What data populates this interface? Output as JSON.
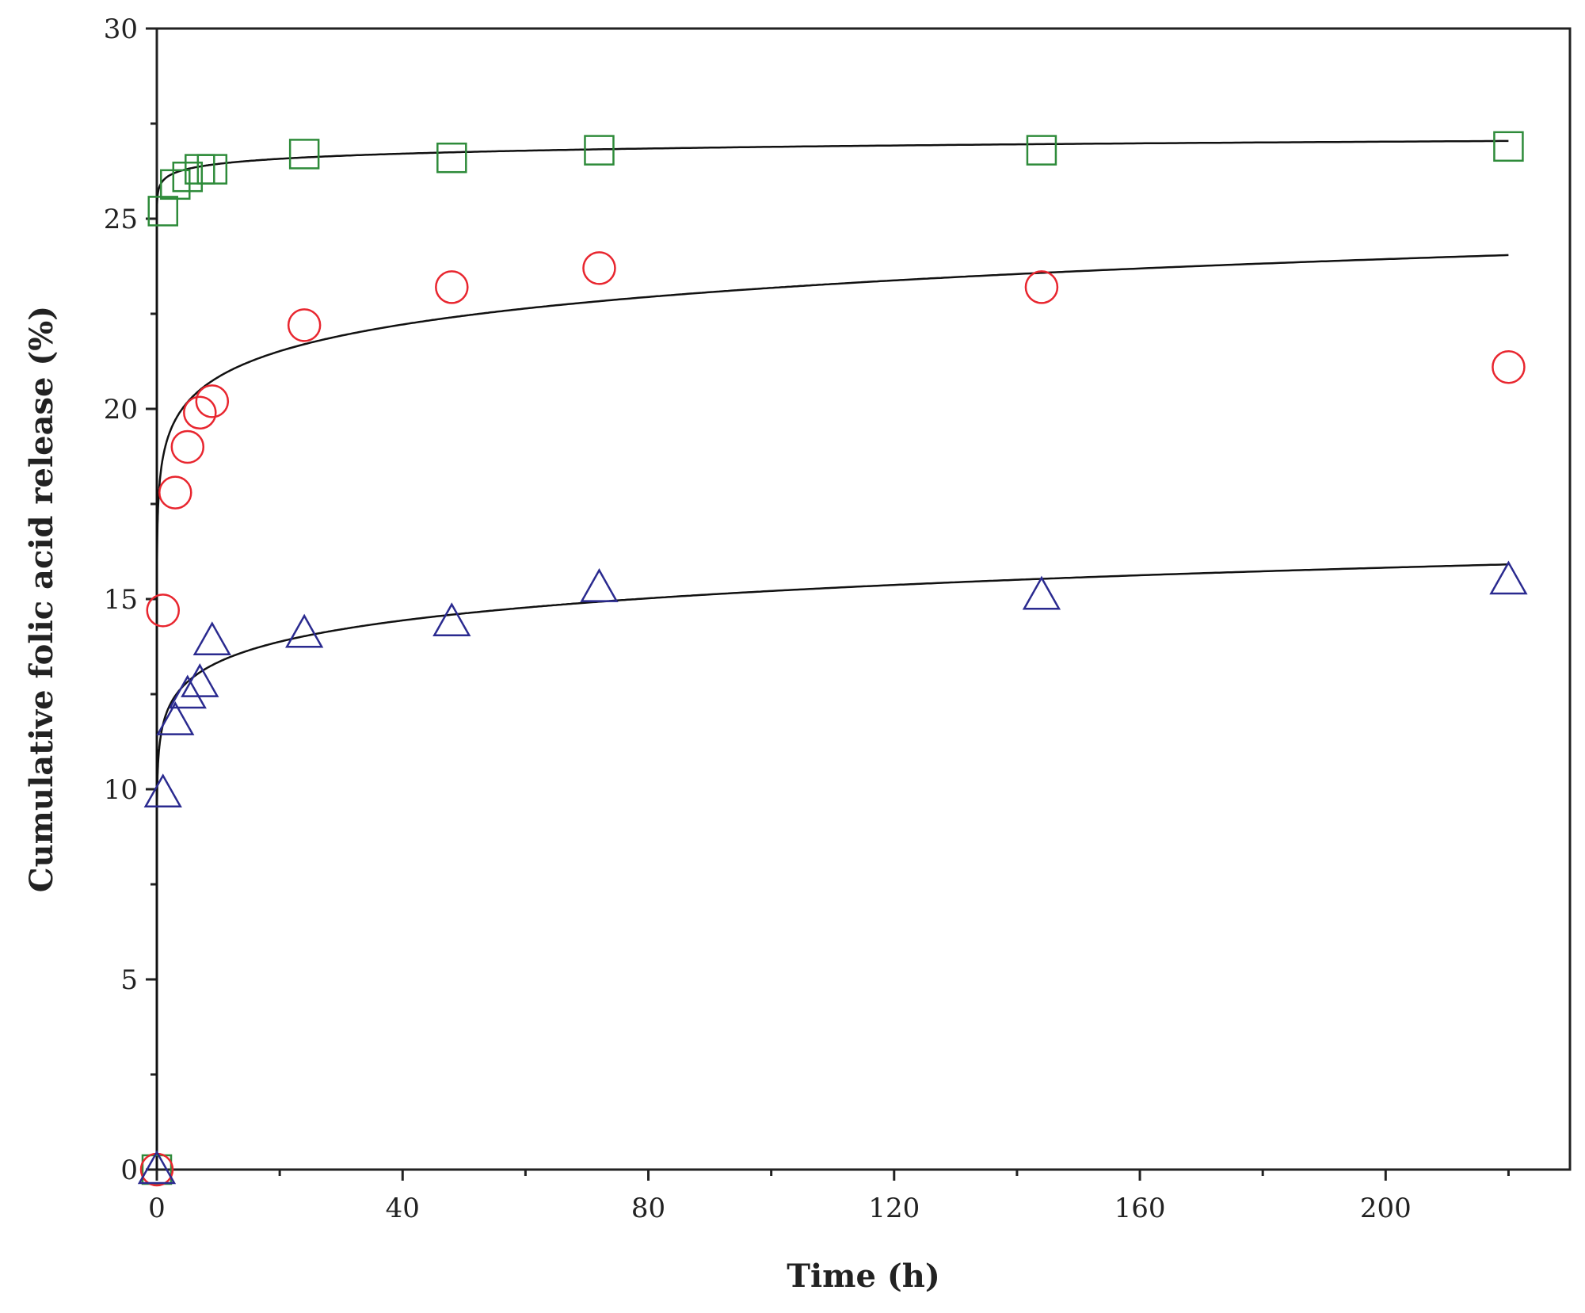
{
  "chart_data": {
    "type": "scatter",
    "title": "",
    "xlabel": "Time (h)",
    "ylabel": "Cumulative folic acid release (%)",
    "xlim": [
      0,
      230
    ],
    "ylim": [
      0,
      30
    ],
    "x_ticks": [
      0,
      40,
      80,
      120,
      160,
      200
    ],
    "x_tick_labels": [
      "0",
      "40",
      "80",
      "120",
      "160",
      "200"
    ],
    "y_ticks": [
      0,
      5,
      10,
      15,
      20,
      25,
      30
    ],
    "y_tick_labels": [
      "0",
      "5",
      "10",
      "15",
      "20",
      "25",
      "30"
    ],
    "grid": false,
    "legend": "none",
    "series": [
      {
        "marker": "square",
        "color": "#2e8b3a",
        "x": [
          0,
          1,
          3,
          5,
          7,
          9,
          24,
          48,
          72,
          144,
          220
        ],
        "y": [
          0,
          25.2,
          25.9,
          26.1,
          26.3,
          26.3,
          26.7,
          26.6,
          26.8,
          26.8,
          26.9
        ],
        "fit": {
          "x_end": 220,
          "y0": 25.0,
          "a": 26.0,
          "b": 0.0073
        }
      },
      {
        "marker": "circle",
        "color": "#e8262f",
        "x": [
          0,
          1,
          3,
          5,
          7,
          9,
          24,
          48,
          72,
          144,
          220
        ],
        "y": [
          0,
          14.7,
          17.8,
          19.0,
          19.9,
          20.2,
          22.2,
          23.2,
          23.7,
          23.2,
          21.1
        ],
        "fit": {
          "x_end": 220,
          "y0": 14.5,
          "a": 18.73,
          "b": 0.0463
        }
      },
      {
        "marker": "triangle",
        "color": "#2a2a8f",
        "x": [
          0,
          1,
          3,
          5,
          7,
          9,
          24,
          48,
          72,
          144,
          220
        ],
        "y": [
          0,
          9.9,
          11.8,
          12.5,
          12.8,
          13.9,
          14.1,
          14.4,
          15.3,
          15.1,
          15.5
        ],
        "fit": {
          "x_end": 220,
          "y0": 9.5,
          "a": 11.7,
          "b": 0.057
        }
      }
    ]
  }
}
